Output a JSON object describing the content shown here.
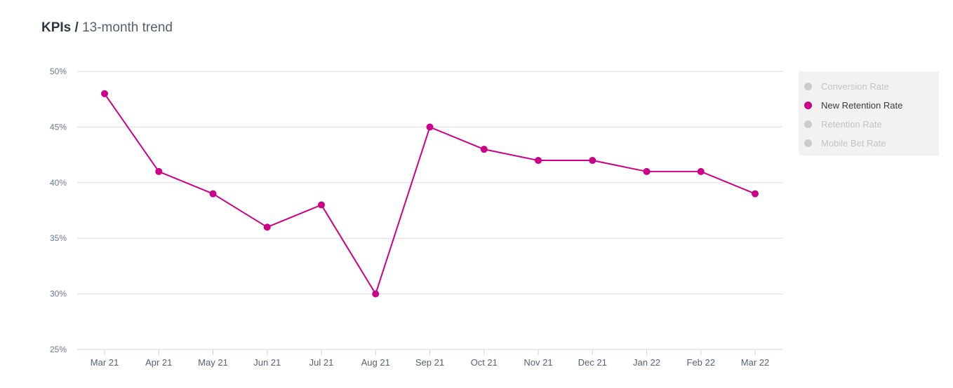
{
  "header": {
    "title_bold": "KPIs /",
    "title_rest": "13-month trend"
  },
  "legend": {
    "items": [
      {
        "label": "Conversion Rate",
        "active": false,
        "color": "#cccccc",
        "text_color": "#c4c4c4"
      },
      {
        "label": "New Retention Rate",
        "active": true,
        "color": "#cc0088",
        "text_color": "#3a3a3a"
      },
      {
        "label": "Retention Rate",
        "active": false,
        "color": "#cccccc",
        "text_color": "#c4c4c4"
      },
      {
        "label": "Mobile Bet Rate",
        "active": false,
        "color": "#cccccc",
        "text_color": "#c4c4c4"
      }
    ]
  },
  "chart_data": {
    "type": "line",
    "title": "",
    "xlabel": "",
    "ylabel": "",
    "categories": [
      "Mar 21",
      "Apr 21",
      "May 21",
      "Jun 21",
      "Jul 21",
      "Aug 21",
      "Sep 21",
      "Oct 21",
      "Nov 21",
      "Dec 21",
      "Jan 22",
      "Feb 22",
      "Mar 22"
    ],
    "series": [
      {
        "name": "New Retention Rate",
        "color": "#cc0088",
        "values": [
          48,
          41,
          39,
          36,
          38,
          30,
          45,
          43,
          42,
          42,
          41,
          41,
          39
        ]
      }
    ],
    "ylim": [
      25,
      50
    ],
    "yticks": [
      25,
      30,
      35,
      40,
      45,
      50
    ],
    "ytick_suffix": "%",
    "grid": true,
    "legend_position": "right"
  }
}
